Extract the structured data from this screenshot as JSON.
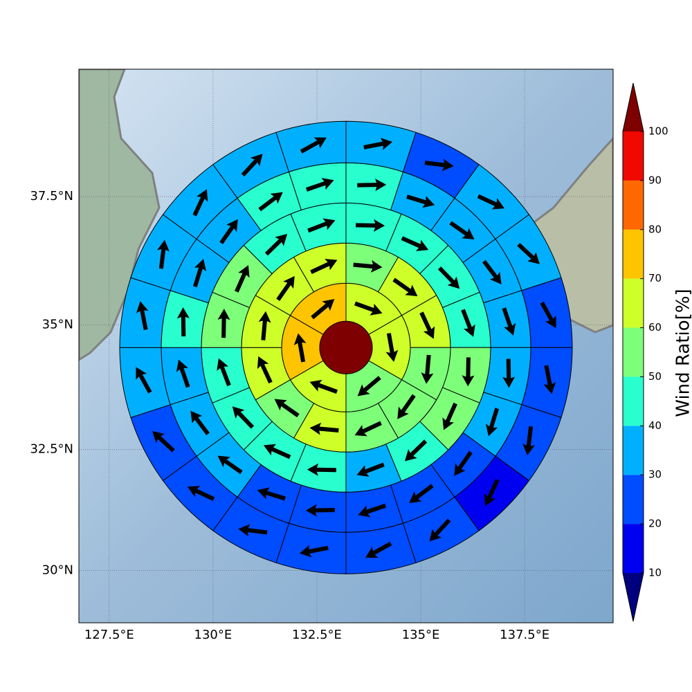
{
  "chart_data": {
    "type": "polar_sector_map",
    "center": [
      133.2,
      34.55
    ],
    "center_value": 105,
    "rings": [
      {
        "values": [
          65,
          65,
          55,
          65,
          75,
          75
        ],
        "directions": [
          110,
          170,
          230,
          290,
          350,
          50
        ]
      },
      {
        "values": [
          55,
          65,
          65,
          55,
          55,
          55,
          65,
          55,
          65,
          65,
          65,
          65
        ],
        "directions": [
          95,
          125,
          155,
          185,
          215,
          245,
          275,
          305,
          335,
          5,
          35,
          65
        ]
      },
      {
        "values": [
          45,
          45,
          45,
          45,
          55,
          55,
          45,
          35,
          45,
          45,
          45,
          45,
          55,
          55,
          45,
          45
        ],
        "directions": [
          91,
          114,
          136,
          159,
          181,
          204,
          226,
          249,
          271,
          294,
          316,
          339,
          1,
          24,
          46,
          69
        ]
      },
      {
        "values": [
          45,
          35,
          35,
          35,
          35,
          35,
          35,
          25,
          25,
          25,
          25,
          25,
          35,
          35,
          35,
          45,
          35,
          35,
          45,
          45
        ],
        "directions": [
          89,
          107,
          125,
          143,
          161,
          179,
          197,
          215,
          233,
          251,
          269,
          287,
          305,
          323,
          341,
          359,
          17,
          35,
          53,
          71
        ]
      },
      {
        "values": [
          35,
          25,
          35,
          35,
          25,
          25,
          25,
          15,
          25,
          25,
          25,
          25,
          25,
          25,
          35,
          35,
          35,
          35,
          35,
          35
        ],
        "directions": [
          79,
          97,
          115,
          133,
          151,
          169,
          187,
          205,
          223,
          241,
          259,
          277,
          295,
          313,
          331,
          349,
          7,
          25,
          43,
          61
        ]
      }
    ],
    "xlim": [
      126.77,
      139.63
    ],
    "ylim": [
      28.9,
      39.9
    ],
    "projection": "mercator",
    "xticks": [
      {
        "value": 127.5,
        "label": "127.5°E"
      },
      {
        "value": 130,
        "label": "130°E"
      },
      {
        "value": 132.5,
        "label": "132.5°E"
      },
      {
        "value": 135,
        "label": "135°E"
      },
      {
        "value": 137.5,
        "label": "137.5°E"
      }
    ],
    "yticks": [
      {
        "value": 30,
        "label": "30°N"
      },
      {
        "value": 32.5,
        "label": "32.5°N"
      },
      {
        "value": 35,
        "label": "35°N"
      },
      {
        "value": 37.5,
        "label": "37.5°N"
      }
    ],
    "grid": true,
    "colorbar": {
      "label": "Wind Ratio[%]",
      "ticks": [
        10,
        20,
        30,
        40,
        50,
        60,
        70,
        80,
        90,
        100
      ],
      "colors": [
        "#0000f1",
        "#004cff",
        "#00b0ff",
        "#29ffce",
        "#7dff7a",
        "#ceff29",
        "#ffc400",
        "#ff6800",
        "#f10800"
      ],
      "under_color": "#00007f",
      "over_color": "#7f0000"
    }
  }
}
